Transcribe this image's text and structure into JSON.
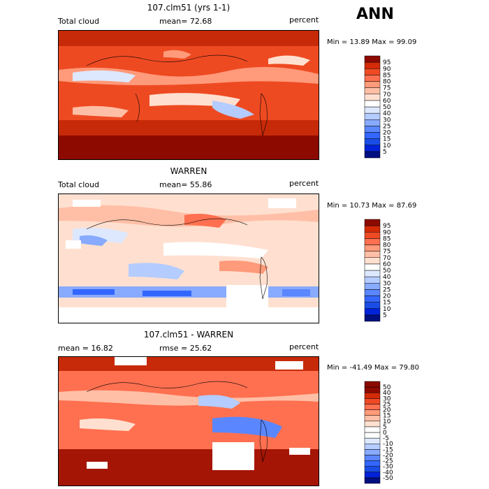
{
  "season": "ANN",
  "chart_data": [
    {
      "type": "heatmap",
      "title": "107.clm51 (yrs 1-1)",
      "left_label": "Total cloud",
      "mean_label": "mean=",
      "mean": "72.68",
      "unit": "percent",
      "min_max": "Min =  13.89 Max =  99.09",
      "colorbar_levels": [
        "5",
        "10",
        "15",
        "20",
        "25",
        "30",
        "40",
        "50",
        "60",
        "70",
        "75",
        "80",
        "85",
        "90",
        "95"
      ],
      "colorbar_colors": [
        "#000f80",
        "#0022d9",
        "#1a4de6",
        "#3366ff",
        "#5a87ff",
        "#88aaff",
        "#b4ccff",
        "#dde8ff",
        "#ffffff",
        "#ffe0d0",
        "#ffbfa6",
        "#ff9a7a",
        "#ff7050",
        "#f04a24",
        "#d42a08",
        "#8c0a00"
      ]
    },
    {
      "type": "heatmap",
      "title": "WARREN",
      "left_label": "Total cloud",
      "mean_label": "mean=",
      "mean": "55.86",
      "unit": "percent",
      "min_max": "Min =  10.73 Max =  87.69",
      "colorbar_levels": [
        "5",
        "10",
        "15",
        "20",
        "25",
        "30",
        "40",
        "50",
        "60",
        "70",
        "75",
        "80",
        "85",
        "90",
        "95"
      ],
      "colorbar_colors": [
        "#000f80",
        "#0022d9",
        "#1a4de6",
        "#3366ff",
        "#5a87ff",
        "#88aaff",
        "#b4ccff",
        "#dde8ff",
        "#ffffff",
        "#ffe0d0",
        "#ffbfa6",
        "#ff9a7a",
        "#ff7050",
        "#f04a24",
        "#d42a08",
        "#8c0a00"
      ]
    },
    {
      "type": "heatmap",
      "title": "107.clm51 - WARREN",
      "left_label": "mean =  16.82",
      "mean_label": "rmse =",
      "mean": "25.62",
      "unit": "percent",
      "min_max": "Min = -41.49 Max =  79.80",
      "colorbar_levels": [
        "-50",
        "-40",
        "-30",
        "-25",
        "-20",
        "-15",
        "-10",
        "-5",
        "0",
        "5",
        "10",
        "15",
        "20",
        "25",
        "30",
        "40",
        "50"
      ],
      "colorbar_colors": [
        "#000f80",
        "#0022d9",
        "#1a4de6",
        "#3366ff",
        "#5a87ff",
        "#88aaff",
        "#b4ccff",
        "#dde8ff",
        "#ffffff",
        "#ffffff",
        "#ffe0d0",
        "#ffbfa6",
        "#ff9a7a",
        "#ff7050",
        "#f04a24",
        "#d42a08",
        "#8c0a00",
        "#8c0a00"
      ]
    }
  ]
}
